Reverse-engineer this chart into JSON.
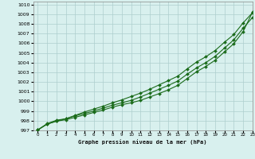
{
  "title": "Graphe pression niveau de la mer (hPa)",
  "xlim": [
    -0.5,
    23
  ],
  "ylim": [
    997,
    1010.3
  ],
  "xticks": [
    0,
    1,
    2,
    3,
    4,
    5,
    6,
    7,
    8,
    9,
    10,
    11,
    12,
    13,
    14,
    15,
    16,
    17,
    18,
    19,
    20,
    21,
    22,
    23
  ],
  "yticks": [
    997,
    998,
    999,
    1000,
    1001,
    1002,
    1003,
    1004,
    1005,
    1006,
    1007,
    1008,
    1009,
    1010
  ],
  "bg_color": "#d8f0ee",
  "grid_color": "#aecece",
  "line_color": "#1a6b1a",
  "line1_x": [
    0,
    1,
    2,
    3,
    4,
    5,
    6,
    7,
    8,
    9,
    10,
    11,
    12,
    13,
    14,
    15,
    16,
    17,
    18,
    19,
    20,
    21,
    22,
    23
  ],
  "line1_y": [
    997.05,
    997.7,
    998.05,
    998.2,
    998.55,
    998.9,
    999.2,
    999.5,
    999.85,
    1000.15,
    1000.5,
    1000.85,
    1001.25,
    1001.7,
    1002.15,
    1002.6,
    1003.35,
    1004.05,
    1004.6,
    1005.25,
    1006.1,
    1006.9,
    1008.1,
    1009.15
  ],
  "line2_x": [
    0,
    1,
    2,
    3,
    4,
    5,
    6,
    7,
    8,
    9,
    10,
    11,
    12,
    13,
    14,
    15,
    16,
    17,
    18,
    19,
    20,
    21,
    22,
    23
  ],
  "line2_y": [
    997.05,
    997.65,
    997.95,
    998.2,
    998.5,
    998.75,
    999.0,
    999.3,
    999.6,
    999.85,
    1000.1,
    1000.45,
    1000.85,
    1001.25,
    1001.65,
    1002.1,
    1002.8,
    1003.45,
    1004.0,
    1004.65,
    1005.5,
    1006.35,
    1007.55,
    1008.65
  ],
  "line3_x": [
    0,
    1,
    2,
    3,
    4,
    5,
    6,
    7,
    8,
    9,
    10,
    11,
    12,
    13,
    14,
    15,
    16,
    17,
    18,
    19,
    20,
    21,
    22,
    23
  ],
  "line3_y": [
    997.05,
    997.65,
    997.95,
    998.1,
    998.35,
    998.6,
    998.85,
    999.1,
    999.4,
    999.65,
    999.85,
    1000.1,
    1000.45,
    1000.8,
    1001.2,
    1001.65,
    1002.35,
    1003.05,
    1003.6,
    1004.25,
    1005.1,
    1005.95,
    1007.2,
    1009.2
  ]
}
